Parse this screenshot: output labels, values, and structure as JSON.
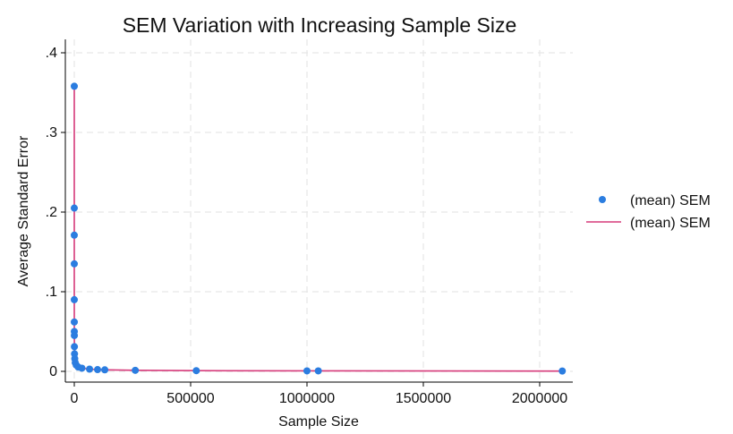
{
  "chart_data": {
    "type": "scatter",
    "title": "SEM Variation with Increasing Sample Size",
    "xlabel": "Sample Size",
    "ylabel": "Average Standard Error",
    "xlim": [
      0,
      2100000
    ],
    "ylim": [
      0,
      0.4
    ],
    "xticks": [
      0,
      500000,
      1000000,
      1500000,
      2000000
    ],
    "xtick_labels": [
      "0",
      "500000",
      "1000000",
      "1500000",
      "2000000"
    ],
    "yticks": [
      0,
      0.1,
      0.2,
      0.3,
      0.4
    ],
    "ytick_labels": [
      "0",
      ".1",
      ".2",
      ".3",
      ".4"
    ],
    "grid": true,
    "legend_position": "right",
    "colors": {
      "markers": "#2b7de0",
      "line": "#d63a7a",
      "grid": "#e6e6e6",
      "axis": "#000000"
    },
    "series": [
      {
        "name": "(mean) SEM",
        "kind": "scatter",
        "x": [
          2,
          4,
          8,
          16,
          32,
          64,
          128,
          256,
          512,
          1024,
          2048,
          4096,
          8192,
          16384,
          32768,
          65536,
          100000,
          131072,
          262144,
          524288,
          1000000,
          1048576,
          2097152
        ],
        "y": [
          0.358,
          0.205,
          0.171,
          0.135,
          0.09,
          0.062,
          0.05,
          0.045,
          0.031,
          0.022,
          0.016,
          0.011,
          0.008,
          0.0055,
          0.004,
          0.0028,
          0.0022,
          0.0019,
          0.0013,
          0.0009,
          0.0006,
          0.0006,
          0.0004
        ]
      },
      {
        "name": "(mean) SEM",
        "kind": "line",
        "x": [
          2,
          4,
          8,
          16,
          32,
          64,
          128,
          256,
          512,
          1024,
          2048,
          4096,
          8192,
          16384,
          32768,
          65536,
          100000,
          131072,
          262144,
          524288,
          1000000,
          1048576,
          2097152
        ],
        "y": [
          0.358,
          0.205,
          0.171,
          0.135,
          0.09,
          0.062,
          0.05,
          0.045,
          0.031,
          0.022,
          0.016,
          0.011,
          0.008,
          0.0055,
          0.004,
          0.0028,
          0.0022,
          0.0019,
          0.0013,
          0.0009,
          0.0006,
          0.0006,
          0.0004
        ]
      }
    ],
    "legend": [
      {
        "label": "(mean) SEM",
        "symbol": "marker"
      },
      {
        "label": "(mean) SEM",
        "symbol": "line"
      }
    ]
  }
}
